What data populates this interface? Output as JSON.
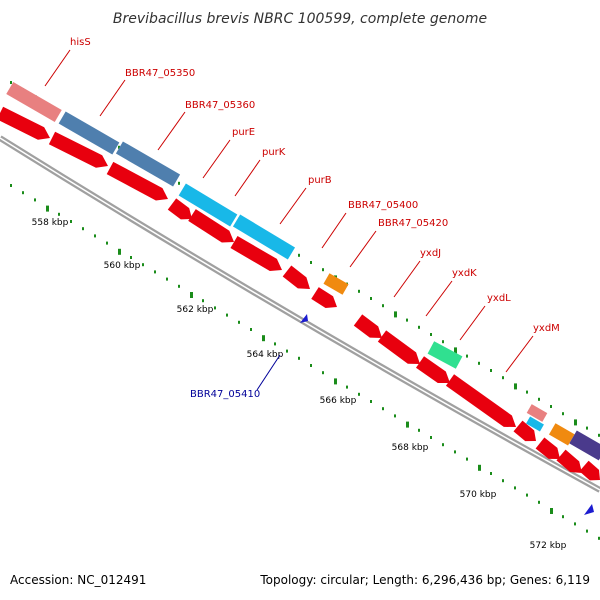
{
  "title": "Brevibacillus brevis NBRC 100599, complete genome",
  "footer": {
    "accession": "Accession: NC_012491",
    "summary": "Topology: circular; Length: 6,296,436 bp; Genes: 6,119"
  },
  "colors": {
    "forward_cds": "#e8000e",
    "reverse_cds": "#1c1cd0",
    "backbone": "#8c8c8c",
    "tick": "#1a8c1a",
    "label_red": "#cc0000",
    "label_blue": "#000099"
  },
  "ticks": [
    "558 kbp",
    "560 kbp",
    "562 kbp",
    "564 kbp",
    "566 kbp",
    "568 kbp",
    "570 kbp",
    "572 kbp"
  ],
  "genes_forward_labeled": [
    {
      "name": "hisS"
    },
    {
      "name": "BBR47_05350"
    },
    {
      "name": "BBR47_05360"
    },
    {
      "name": "purE"
    },
    {
      "name": "purK"
    },
    {
      "name": "purB"
    },
    {
      "name": "BBR47_05400"
    },
    {
      "name": "BBR47_05420"
    },
    {
      "name": "yxdJ"
    },
    {
      "name": "yxdK"
    },
    {
      "name": "yxdL"
    },
    {
      "name": "yxdM"
    }
  ],
  "genes_reverse_labeled": [
    {
      "name": "BBR47_05410"
    }
  ]
}
